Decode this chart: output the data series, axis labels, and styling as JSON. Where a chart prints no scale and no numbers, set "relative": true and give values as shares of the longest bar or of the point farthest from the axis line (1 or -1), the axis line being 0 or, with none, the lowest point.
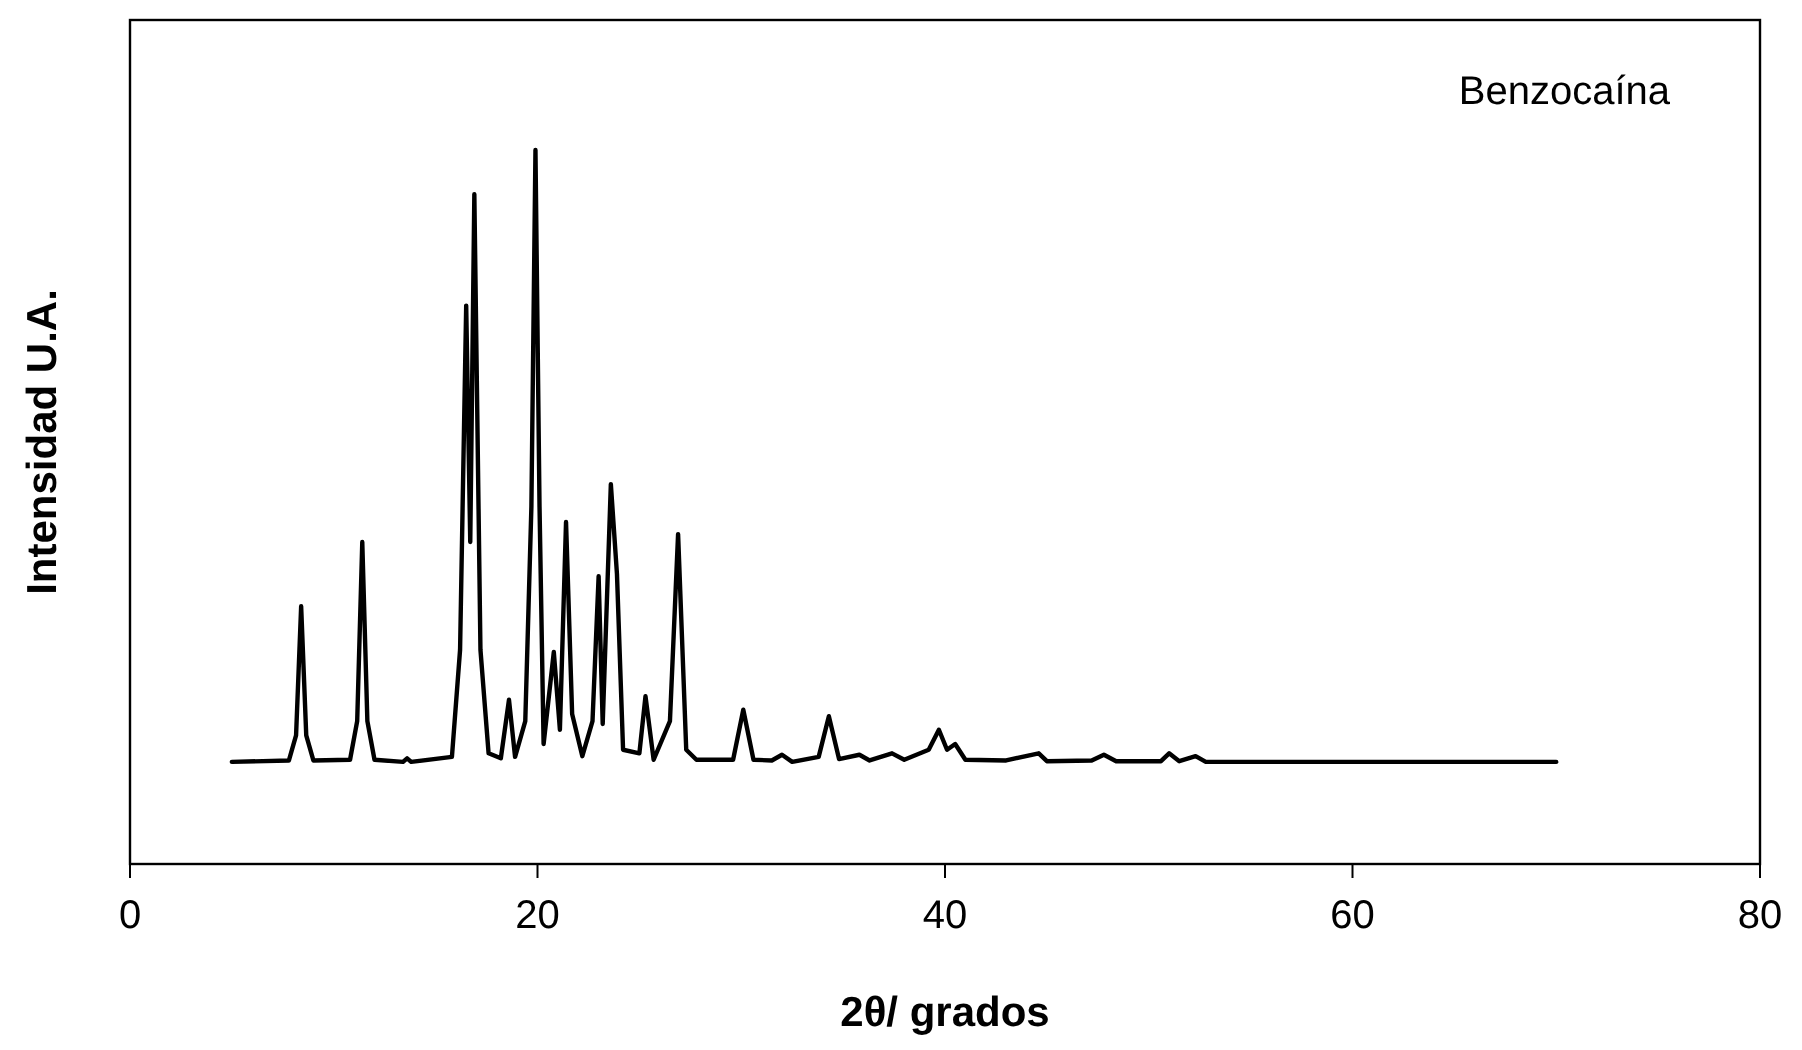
{
  "chart_data": {
    "type": "line",
    "relative": true,
    "xlabel": "2θ/ grados",
    "ylabel": "Intensidad U.A.",
    "annotations": [
      "Benzocaína"
    ],
    "xlim": [
      0,
      80
    ],
    "xticks": [
      0,
      20,
      40,
      60,
      80
    ],
    "grid": false,
    "marker": "none",
    "line_style": "solid",
    "tick_labels": "x",
    "series": [
      {
        "color": "#000000",
        "x": [
          5,
          7.8,
          8.15,
          8.4,
          8.65,
          9,
          10.8,
          11.15,
          11.4,
          11.65,
          12,
          13.4,
          13.6,
          13.8,
          15.8,
          16.2,
          16.5,
          16.7,
          16.9,
          17.2,
          17.6,
          18.2,
          18.6,
          18.9,
          19.4,
          19.7,
          19.9,
          20.1,
          20.3,
          20.8,
          21.1,
          21.4,
          21.7,
          22.2,
          22.7,
          23.0,
          23.2,
          23.6,
          23.9,
          24.2,
          25.0,
          25.3,
          25.7,
          26.5,
          26.9,
          27.3,
          27.8,
          29.6,
          30.1,
          30.6,
          31.5,
          32,
          32.5,
          33.8,
          34.3,
          34.8,
          35.8,
          36.3,
          37.4,
          38.0,
          39.2,
          39.7,
          40.1,
          40.5,
          41,
          43,
          44.6,
          45,
          47.2,
          47.8,
          48.4,
          50.6,
          51,
          51.5,
          52.3,
          52.8,
          60,
          70
        ],
        "values": [
          0.143,
          0.145,
          0.18,
          0.361,
          0.18,
          0.145,
          0.146,
          0.2,
          0.451,
          0.2,
          0.146,
          0.143,
          0.148,
          0.143,
          0.15,
          0.3,
          0.782,
          0.451,
          0.938,
          0.3,
          0.155,
          0.148,
          0.23,
          0.15,
          0.2,
          0.5,
          1.0,
          0.5,
          0.168,
          0.297,
          0.188,
          0.479,
          0.21,
          0.151,
          0.2,
          0.403,
          0.196,
          0.532,
          0.406,
          0.16,
          0.155,
          0.235,
          0.146,
          0.2,
          0.462,
          0.16,
          0.146,
          0.146,
          0.216,
          0.146,
          0.145,
          0.153,
          0.143,
          0.15,
          0.207,
          0.147,
          0.153,
          0.145,
          0.155,
          0.146,
          0.16,
          0.188,
          0.16,
          0.168,
          0.146,
          0.145,
          0.155,
          0.144,
          0.145,
          0.153,
          0.144,
          0.144,
          0.155,
          0.144,
          0.151,
          0.143,
          0.143,
          0.143
        ]
      }
    ]
  }
}
